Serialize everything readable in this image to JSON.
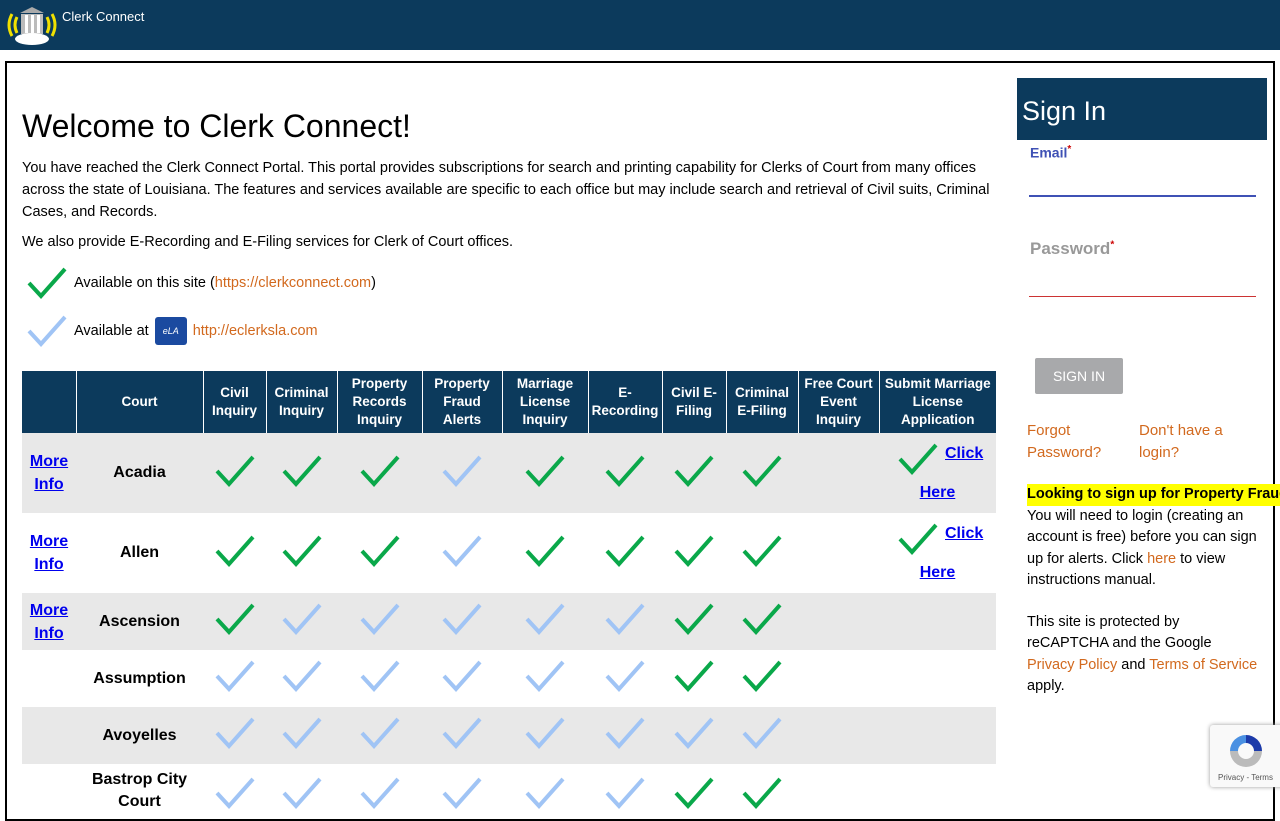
{
  "header": {
    "title": "Clerk Connect"
  },
  "main": {
    "heading": "Welcome to Clerk Connect!",
    "intro": "You have reached the Clerk Connect Portal. This portal provides subscriptions for search and printing capability for Clerks of Court from many offices across the state of Louisiana. The features and services available are specific to each office but may include search and retrieval of Civil suits, Criminal Cases, and Records.",
    "intro2": "We also provide E-Recording and E-Filing services for Clerk of Court offices.",
    "legend": {
      "available_here": "Available on this site (",
      "here_link": "https://clerkconnect.com",
      "close": ")",
      "available_at": "Available at",
      "eclerks_logo": "eClerks LA",
      "eclerks_link": "http://eclerksla.com"
    }
  },
  "colors": {
    "header": "#0c3a5c",
    "green_check": "#0aa84a",
    "light_check": "#a0c4f5",
    "link_orange": "#d2691e"
  },
  "table": {
    "columns": [
      "",
      "Court",
      "Civil Inquiry",
      "Criminal Inquiry",
      "Property Records Inquiry",
      "Property Fraud Alerts",
      "Marriage License Inquiry",
      "E-Recording",
      "Civil E-Filing",
      "Criminal E-Filing",
      "Free Court Event Inquiry",
      "Submit Marriage License Application"
    ],
    "more_info": "More Info",
    "click": "Click",
    "here": "Here",
    "rows": [
      {
        "court": "Acadia",
        "more_info": true,
        "cells": [
          "g",
          "g",
          "g",
          "l",
          "g",
          "g",
          "g",
          "g",
          ""
        ],
        "submit": true
      },
      {
        "court": "Allen",
        "more_info": true,
        "cells": [
          "g",
          "g",
          "g",
          "l",
          "g",
          "g",
          "g",
          "g",
          ""
        ],
        "submit": true
      },
      {
        "court": "Ascension",
        "more_info": true,
        "cells": [
          "g",
          "l",
          "l",
          "l",
          "l",
          "l",
          "g",
          "g",
          ""
        ],
        "submit": false
      },
      {
        "court": "Assumption",
        "more_info": false,
        "cells": [
          "l",
          "l",
          "l",
          "l",
          "l",
          "l",
          "g",
          "g",
          ""
        ],
        "submit": false
      },
      {
        "court": "Avoyelles",
        "more_info": false,
        "cells": [
          "l",
          "l",
          "l",
          "l",
          "l",
          "l",
          "l",
          "l",
          ""
        ],
        "submit": false
      },
      {
        "court": "Bastrop City Court",
        "more_info": false,
        "cells": [
          "l",
          "l",
          "l",
          "l",
          "l",
          "l",
          "g",
          "g",
          ""
        ],
        "submit": false
      }
    ]
  },
  "signin": {
    "title": "Sign In",
    "email_label": "Email",
    "password_label": "Password",
    "required": "*",
    "button": "SIGN IN",
    "forgot": "Forgot Password?",
    "no_login": "Don't have a login?",
    "highlight": "Looking to sign up for Property Fraud Alerts?",
    "info1": "You will need to login (creating an account is free) before you can sign up for alerts. Click ",
    "here": "here",
    "info2": " to view instructions manual.",
    "recap1": "This site is protected by reCAPTCHA and the Google ",
    "privacy": "Privacy Policy",
    "and": " and ",
    "terms": "Terms of Service",
    "apply": " apply."
  },
  "recaptcha": {
    "links": "Privacy - Terms"
  }
}
